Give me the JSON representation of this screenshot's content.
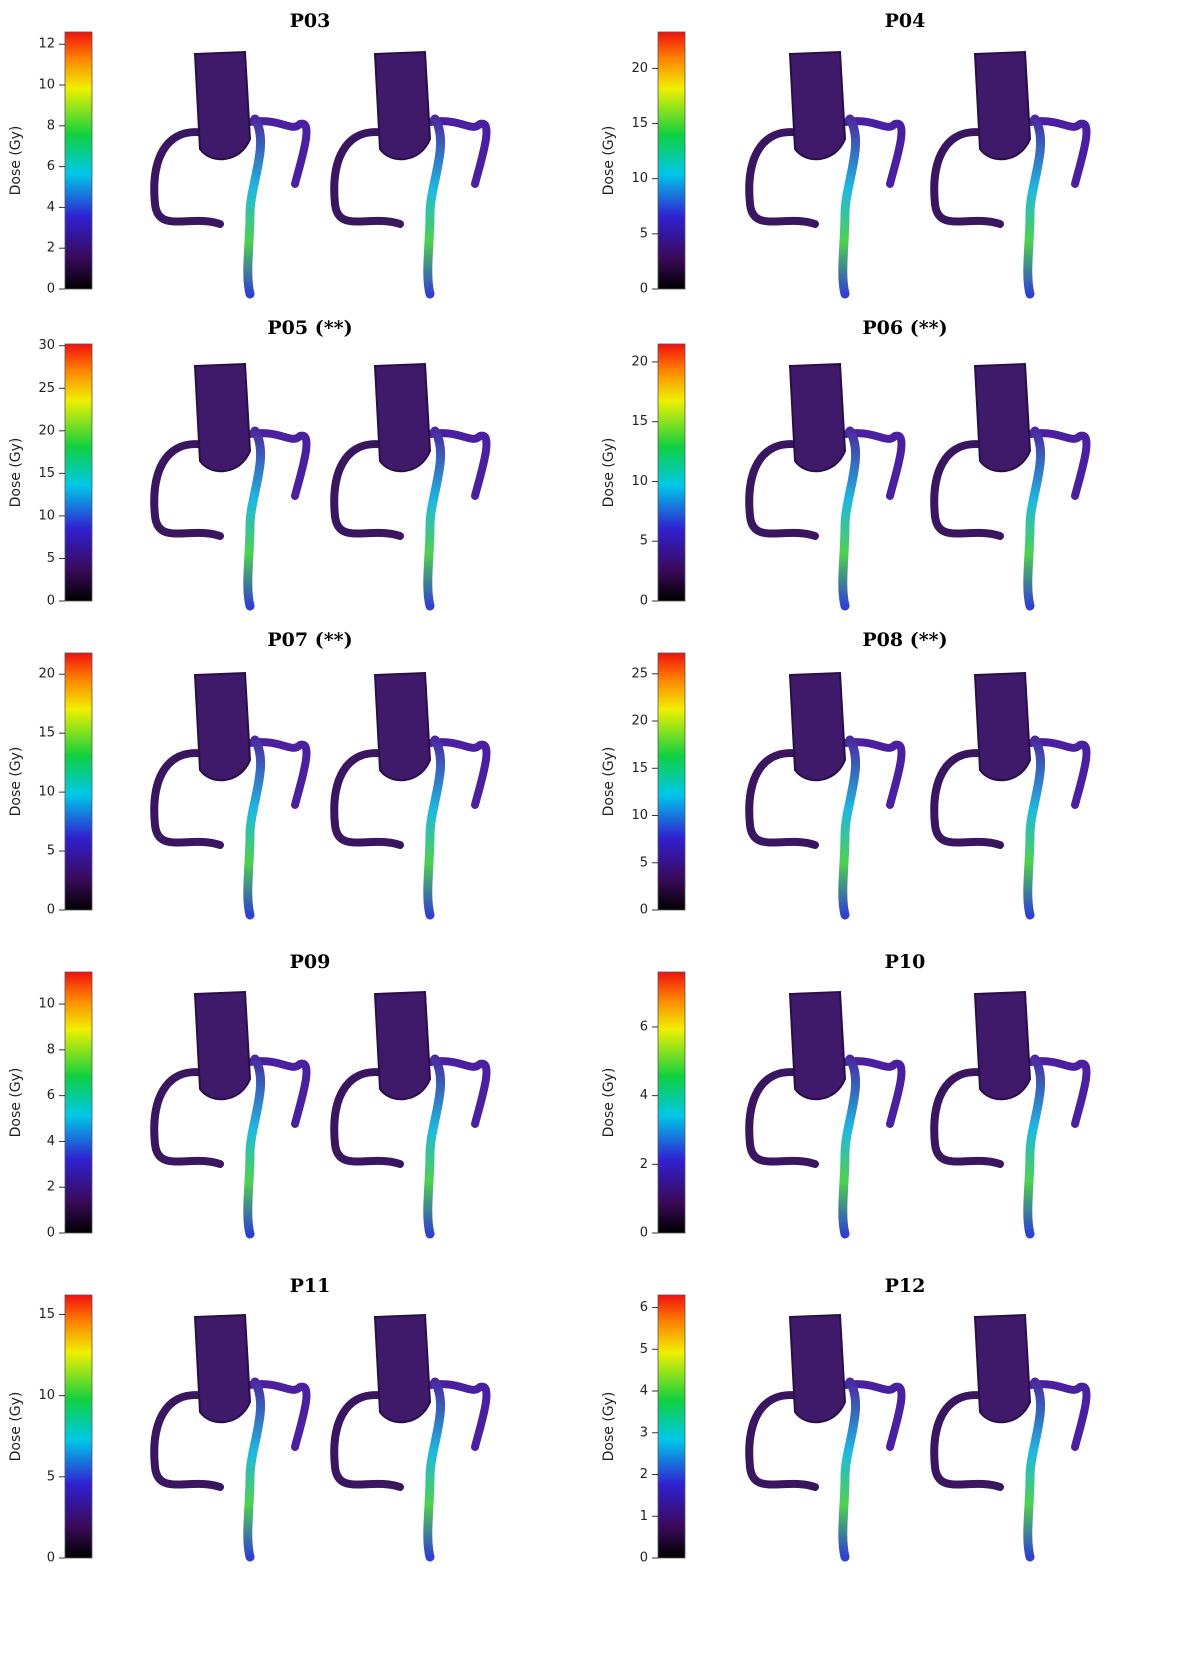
{
  "panels": [
    {
      "title": "P03",
      "colorbar_label": "Dose (Gy)",
      "ylim": [
        0,
        12.6
      ],
      "yticks": [
        0,
        2,
        4,
        6,
        8,
        10,
        12
      ]
    },
    {
      "title": "P04",
      "colorbar_label": "Dose (Gy)",
      "ylim": [
        0,
        23.3
      ],
      "yticks": [
        0,
        5,
        10,
        15,
        20
      ]
    },
    {
      "title": "P05 (**)",
      "colorbar_label": "Dose (Gy)",
      "ylim": [
        0,
        30.2
      ],
      "yticks": [
        0,
        5,
        10,
        15,
        20,
        25,
        30
      ]
    },
    {
      "title": "P06 (**)",
      "colorbar_label": "Dose (Gy)",
      "ylim": [
        0,
        21.5
      ],
      "yticks": [
        0,
        5,
        10,
        15,
        20
      ]
    },
    {
      "title": "P07 (**)",
      "colorbar_label": "Dose (Gy)",
      "ylim": [
        0,
        21.8
      ],
      "yticks": [
        0,
        5,
        10,
        15,
        20
      ]
    },
    {
      "title": "P08 (**)",
      "colorbar_label": "Dose (Gy)",
      "ylim": [
        0,
        27.2
      ],
      "yticks": [
        0,
        5,
        10,
        15,
        20,
        25
      ]
    },
    {
      "title": "P09",
      "colorbar_label": "Dose (Gy)",
      "ylim": [
        0,
        11.4
      ],
      "yticks": [
        0,
        2,
        4,
        6,
        8,
        10
      ]
    },
    {
      "title": "P10",
      "colorbar_label": "Dose (Gy)",
      "ylim": [
        0,
        7.6
      ],
      "yticks": [
        0,
        2,
        4,
        6
      ]
    },
    {
      "title": "P11",
      "colorbar_label": "Dose (Gy)",
      "ylim": [
        0,
        16.2
      ],
      "yticks": [
        0,
        5,
        10,
        15
      ]
    },
    {
      "title": "P12",
      "colorbar_label": "Dose (Gy)",
      "ylim": [
        0,
        6.3
      ],
      "yticks": [
        0,
        1,
        2,
        3,
        4,
        5,
        6
      ]
    }
  ]
}
